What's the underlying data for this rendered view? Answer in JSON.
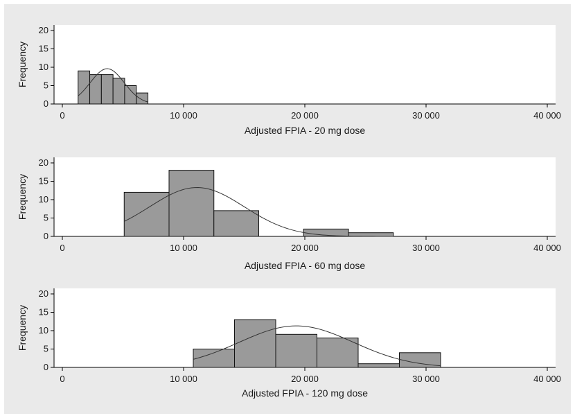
{
  "chart_data": [
    {
      "type": "bar",
      "subtype": "histogram-with-normal-curve",
      "xlabel": "Adjusted FPIA - 20 mg dose",
      "ylabel": "Frequency",
      "xlim": [
        0,
        40000
      ],
      "ylim": [
        0,
        20
      ],
      "xticks": [
        0,
        10000,
        20000,
        30000,
        40000
      ],
      "xtick_labels": [
        "0",
        "10 000",
        "20 000",
        "30 000",
        "40 000"
      ],
      "yticks": [
        0,
        5,
        10,
        15,
        20
      ],
      "yticks_labels": [
        "0",
        "5",
        "10",
        "15",
        "20"
      ],
      "bins": [
        {
          "x0": 1300,
          "x1": 2260,
          "count": 9
        },
        {
          "x0": 2260,
          "x1": 3220,
          "count": 8
        },
        {
          "x0": 3220,
          "x1": 4180,
          "count": 8
        },
        {
          "x0": 4180,
          "x1": 5140,
          "count": 7
        },
        {
          "x0": 5140,
          "x1": 6100,
          "count": 5
        },
        {
          "x0": 6100,
          "x1": 7060,
          "count": 3
        }
      ],
      "normal_curve": {
        "mean": 3700,
        "sd": 1400,
        "peak": 9.6,
        "x_start": 1300,
        "x_end": 7060
      },
      "grid": false,
      "bar_color": "#9a9a9a"
    },
    {
      "type": "bar",
      "subtype": "histogram-with-normal-curve",
      "xlabel": "Adjusted FPIA - 60 mg dose",
      "ylabel": "Frequency",
      "xlim": [
        0,
        40000
      ],
      "ylim": [
        0,
        20
      ],
      "xticks": [
        0,
        10000,
        20000,
        30000,
        40000
      ],
      "xtick_labels": [
        "0",
        "10 000",
        "20 000",
        "30 000",
        "40 000"
      ],
      "yticks": [
        0,
        5,
        10,
        15,
        20
      ],
      "yticks_labels": [
        "0",
        "5",
        "10",
        "15",
        "20"
      ],
      "bins": [
        {
          "x0": 5100,
          "x1": 8800,
          "count": 12
        },
        {
          "x0": 8800,
          "x1": 12500,
          "count": 18
        },
        {
          "x0": 12500,
          "x1": 16200,
          "count": 7
        },
        {
          "x0": 16200,
          "x1": 19900,
          "count": 0
        },
        {
          "x0": 19900,
          "x1": 23600,
          "count": 2
        },
        {
          "x0": 23600,
          "x1": 27300,
          "count": 1
        }
      ],
      "normal_curve": {
        "mean": 11100,
        "sd": 3900,
        "peak": 13.3,
        "x_start": 5100,
        "x_end": 27300
      },
      "grid": false,
      "bar_color": "#9a9a9a"
    },
    {
      "type": "bar",
      "subtype": "histogram-with-normal-curve",
      "xlabel": "Adjusted FPIA - 120 mg dose",
      "ylabel": "Frequency",
      "xlim": [
        0,
        40000
      ],
      "ylim": [
        0,
        20
      ],
      "xticks": [
        0,
        10000,
        20000,
        30000,
        40000
      ],
      "xtick_labels": [
        "0",
        "10 000",
        "20 000",
        "30 000",
        "40 000"
      ],
      "yticks": [
        0,
        5,
        10,
        15,
        20
      ],
      "yticks_labels": [
        "0",
        "5",
        "10",
        "15",
        "20"
      ],
      "bins": [
        {
          "x0": 10800,
          "x1": 14200,
          "count": 5
        },
        {
          "x0": 14200,
          "x1": 17600,
          "count": 13
        },
        {
          "x0": 17600,
          "x1": 21000,
          "count": 9
        },
        {
          "x0": 21000,
          "x1": 24400,
          "count": 8
        },
        {
          "x0": 24400,
          "x1": 27800,
          "count": 1
        },
        {
          "x0": 27800,
          "x1": 31200,
          "count": 4
        }
      ],
      "normal_curve": {
        "mean": 19300,
        "sd": 4700,
        "peak": 11.3,
        "x_start": 10800,
        "x_end": 31200
      },
      "grid": false,
      "bar_color": "#9a9a9a"
    }
  ]
}
